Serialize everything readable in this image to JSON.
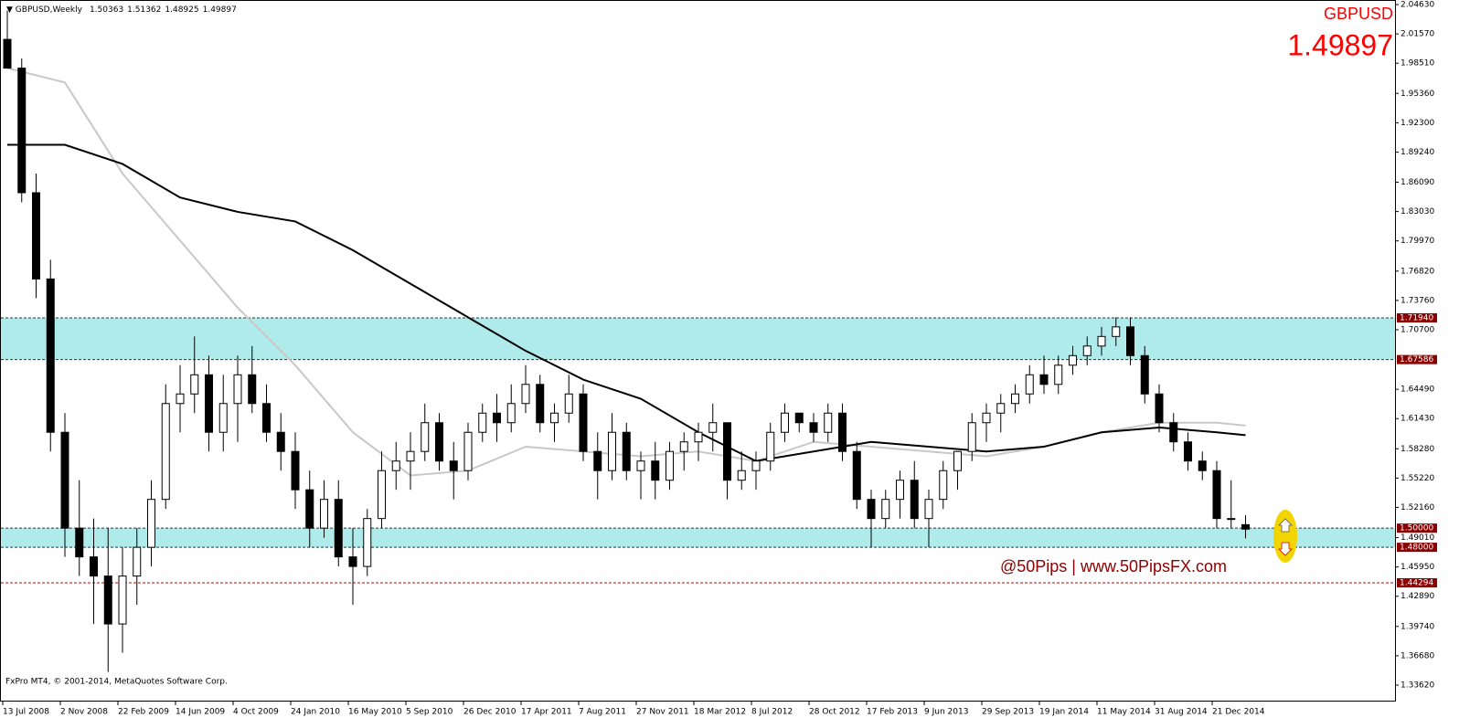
{
  "chart_data": {
    "type": "candlestick",
    "symbol": "GBPUSD",
    "title": "GBPUSD,Weekly",
    "header_values": [
      1.50363,
      1.51362,
      1.48925,
      1.49897
    ],
    "last_price": 1.49897,
    "watermark": "@50Pips | www.50PipsFX.com",
    "copyright": "FxPro MT4, © 2001-2014, MetaQuotes Software Corp.",
    "x_labels": [
      "13 Jul 2008",
      "2 Nov 2008",
      "22 Feb 2009",
      "14 Jun 2009",
      "4 Oct 2009",
      "24 Jan 2010",
      "16 May 2010",
      "5 Sep 2010",
      "26 Dec 2010",
      "17 Apr 2011",
      "7 Aug 2011",
      "27 Nov 2011",
      "18 Mar 2012",
      "8 Jul 2012",
      "28 Oct 2012",
      "17 Feb 2013",
      "9 Jun 2013",
      "29 Sep 2013",
      "19 Jan 2014",
      "11 May 2014",
      "31 Aug 2014",
      "21 Dec 2014"
    ],
    "candles": {
      "open": [
        2.01,
        1.98,
        1.85,
        1.76,
        1.6,
        1.5,
        1.47,
        1.45,
        1.4,
        1.45,
        1.48,
        1.53,
        1.63,
        1.64,
        1.66,
        1.6,
        1.63,
        1.66,
        1.63,
        1.6,
        1.58,
        1.54,
        1.5,
        1.53,
        1.47,
        1.46,
        1.51,
        1.56,
        1.57,
        1.58,
        1.61,
        1.57,
        1.56,
        1.6,
        1.62,
        1.61,
        1.63,
        1.65,
        1.61,
        1.62,
        1.64,
        1.58,
        1.56,
        1.6,
        1.56,
        1.57,
        1.55,
        1.58,
        1.59,
        1.6,
        1.61,
        1.55,
        1.56,
        1.57,
        1.6,
        1.62,
        1.61,
        1.6,
        1.62,
        1.58,
        1.53,
        1.51,
        1.53,
        1.55,
        1.51,
        1.53,
        1.56,
        1.58,
        1.61,
        1.62,
        1.63,
        1.64,
        1.66,
        1.65,
        1.67,
        1.68,
        1.69,
        1.7,
        1.71,
        1.68,
        1.64,
        1.61,
        1.59,
        1.57,
        1.56,
        1.51,
        1.50363
      ],
      "high": [
        2.04,
        1.99,
        1.87,
        1.78,
        1.62,
        1.55,
        1.51,
        1.5,
        1.48,
        1.5,
        1.55,
        1.65,
        1.67,
        1.7,
        1.68,
        1.66,
        1.68,
        1.69,
        1.65,
        1.62,
        1.6,
        1.56,
        1.55,
        1.55,
        1.5,
        1.52,
        1.58,
        1.59,
        1.6,
        1.63,
        1.62,
        1.59,
        1.61,
        1.63,
        1.64,
        1.65,
        1.67,
        1.66,
        1.63,
        1.66,
        1.65,
        1.6,
        1.62,
        1.61,
        1.58,
        1.59,
        1.59,
        1.6,
        1.61,
        1.63,
        1.61,
        1.58,
        1.58,
        1.61,
        1.63,
        1.62,
        1.62,
        1.63,
        1.63,
        1.59,
        1.54,
        1.54,
        1.56,
        1.57,
        1.54,
        1.57,
        1.58,
        1.62,
        1.63,
        1.64,
        1.65,
        1.67,
        1.68,
        1.68,
        1.69,
        1.7,
        1.71,
        1.72,
        1.72,
        1.69,
        1.65,
        1.62,
        1.6,
        1.58,
        1.57,
        1.55,
        1.51362
      ],
      "low": [
        1.98,
        1.84,
        1.74,
        1.58,
        1.47,
        1.45,
        1.4,
        1.35,
        1.37,
        1.42,
        1.46,
        1.52,
        1.6,
        1.62,
        1.58,
        1.58,
        1.59,
        1.62,
        1.59,
        1.56,
        1.52,
        1.48,
        1.49,
        1.46,
        1.42,
        1.45,
        1.5,
        1.54,
        1.54,
        1.57,
        1.56,
        1.53,
        1.55,
        1.59,
        1.59,
        1.6,
        1.62,
        1.6,
        1.59,
        1.61,
        1.57,
        1.53,
        1.55,
        1.55,
        1.53,
        1.53,
        1.54,
        1.56,
        1.57,
        1.58,
        1.53,
        1.54,
        1.54,
        1.56,
        1.59,
        1.6,
        1.59,
        1.59,
        1.57,
        1.52,
        1.48,
        1.5,
        1.51,
        1.5,
        1.48,
        1.52,
        1.54,
        1.57,
        1.59,
        1.6,
        1.62,
        1.63,
        1.64,
        1.64,
        1.66,
        1.67,
        1.68,
        1.69,
        1.67,
        1.63,
        1.6,
        1.58,
        1.56,
        1.55,
        1.5,
        1.5,
        1.48925
      ],
      "close": [
        1.98,
        1.85,
        1.76,
        1.6,
        1.5,
        1.47,
        1.45,
        1.4,
        1.45,
        1.48,
        1.53,
        1.63,
        1.64,
        1.66,
        1.6,
        1.63,
        1.66,
        1.63,
        1.6,
        1.58,
        1.54,
        1.5,
        1.53,
        1.47,
        1.46,
        1.51,
        1.56,
        1.57,
        1.58,
        1.61,
        1.57,
        1.56,
        1.6,
        1.62,
        1.61,
        1.63,
        1.65,
        1.61,
        1.62,
        1.64,
        1.58,
        1.56,
        1.6,
        1.56,
        1.57,
        1.55,
        1.58,
        1.59,
        1.6,
        1.61,
        1.55,
        1.56,
        1.57,
        1.6,
        1.62,
        1.61,
        1.6,
        1.62,
        1.58,
        1.53,
        1.51,
        1.53,
        1.55,
        1.51,
        1.53,
        1.56,
        1.58,
        1.61,
        1.62,
        1.63,
        1.64,
        1.66,
        1.65,
        1.67,
        1.68,
        1.69,
        1.7,
        1.71,
        1.68,
        1.64,
        1.61,
        1.59,
        1.57,
        1.56,
        1.51,
        1.51,
        1.49897
      ]
    },
    "moving_averages": [
      {
        "color": "#c8c8c8",
        "x": [
          0,
          4,
          8,
          12,
          16,
          20,
          24,
          28,
          32,
          36,
          40,
          44,
          48,
          52,
          56,
          60,
          64,
          68,
          72,
          76,
          80,
          84,
          86
        ],
        "values": [
          1.98,
          1.965,
          1.87,
          1.8,
          1.73,
          1.67,
          1.6,
          1.555,
          1.56,
          1.585,
          1.58,
          1.575,
          1.58,
          1.57,
          1.59,
          1.585,
          1.58,
          1.575,
          1.585,
          1.6,
          1.61,
          1.61,
          1.607
        ]
      },
      {
        "color": "#000000",
        "x": [
          0,
          4,
          8,
          12,
          16,
          20,
          24,
          28,
          32,
          36,
          40,
          44,
          48,
          52,
          56,
          60,
          64,
          68,
          72,
          76,
          80,
          84,
          86
        ],
        "values": [
          1.9,
          1.9,
          1.88,
          1.845,
          1.83,
          1.82,
          1.79,
          1.755,
          1.72,
          1.685,
          1.655,
          1.635,
          1.6,
          1.57,
          1.58,
          1.59,
          1.585,
          1.58,
          1.585,
          1.6,
          1.605,
          1.6,
          1.597
        ]
      }
    ],
    "zones": [
      [
        1.67586,
        1.7194
      ],
      [
        1.48,
        1.5
      ]
    ],
    "zone_color": "#b0ebeb",
    "levels": [
      {
        "value": 1.7194,
        "label": "1.71940",
        "color": "#333333"
      },
      {
        "value": 1.67586,
        "label": "1.67586",
        "color": "#333333"
      },
      {
        "value": 1.5,
        "label": "1.50000",
        "color": "#333333"
      },
      {
        "value": 1.48,
        "label": "1.48000",
        "color": "#333333"
      },
      {
        "value": 1.44294,
        "label": "1.44294",
        "color": "#c00000"
      }
    ],
    "ylim": [
      1.3362,
      2.0463
    ],
    "yticks": [
      {
        "value": 2.0463,
        "label": "2.04630"
      },
      {
        "value": 2.0157,
        "label": "2.01570"
      },
      {
        "value": 1.9851,
        "label": "1.98510"
      },
      {
        "value": 1.9536,
        "label": "1.95360"
      },
      {
        "value": 1.923,
        "label": "1.92300"
      },
      {
        "value": 1.8924,
        "label": "1.89240"
      },
      {
        "value": 1.8609,
        "label": "1.86090"
      },
      {
        "value": 1.8303,
        "label": "1.83030"
      },
      {
        "value": 1.7997,
        "label": "1.79970"
      },
      {
        "value": 1.7682,
        "label": "1.76820"
      },
      {
        "value": 1.7376,
        "label": "1.73760"
      },
      {
        "value": 1.707,
        "label": "1.70700"
      },
      {
        "value": 1.6449,
        "label": "1.64490"
      },
      {
        "value": 1.6143,
        "label": "1.61430"
      },
      {
        "value": 1.5828,
        "label": "1.58280"
      },
      {
        "value": 1.5522,
        "label": "1.55220"
      },
      {
        "value": 1.5216,
        "label": "1.52160"
      },
      {
        "value": 1.4901,
        "label": "1.49010"
      },
      {
        "value": 1.4595,
        "label": "1.45950"
      },
      {
        "value": 1.4289,
        "label": "1.42890"
      },
      {
        "value": 1.3974,
        "label": "1.39740"
      },
      {
        "value": 1.3668,
        "label": "1.36680"
      },
      {
        "value": 1.3362,
        "label": "1.33620"
      }
    ]
  }
}
